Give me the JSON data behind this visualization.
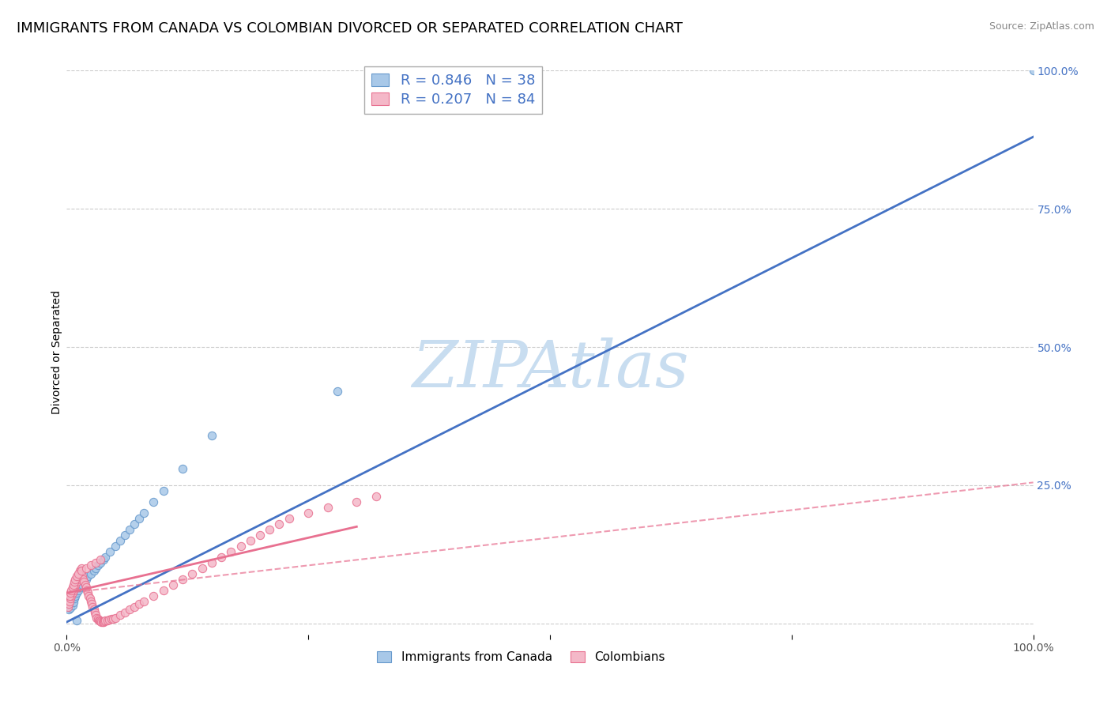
{
  "title": "IMMIGRANTS FROM CANADA VS COLOMBIAN DIVORCED OR SEPARATED CORRELATION CHART",
  "source": "Source: ZipAtlas.com",
  "ylabel": "Divorced or Separated",
  "xlabel": "",
  "watermark": "ZIPAtlas",
  "series": [
    {
      "name": "Immigrants from Canada",
      "color": "#a8c8e8",
      "edge_color": "#6699cc",
      "R": 0.846,
      "N": 38,
      "line_color": "#4472c4",
      "line_style": "solid",
      "x": [
        0.001,
        0.002,
        0.003,
        0.004,
        0.005,
        0.006,
        0.007,
        0.008,
        0.009,
        0.01,
        0.012,
        0.014,
        0.016,
        0.018,
        0.02,
        0.022,
        0.025,
        0.028,
        0.03,
        0.032,
        0.035,
        0.038,
        0.04,
        0.045,
        0.05,
        0.055,
        0.06,
        0.065,
        0.07,
        0.075,
        0.08,
        0.09,
        0.1,
        0.12,
        0.15,
        0.28,
        0.01,
        1.0
      ],
      "y": [
        0.03,
        0.025,
        0.035,
        0.028,
        0.04,
        0.032,
        0.038,
        0.045,
        0.05,
        0.055,
        0.06,
        0.065,
        0.07,
        0.075,
        0.08,
        0.085,
        0.09,
        0.095,
        0.1,
        0.105,
        0.11,
        0.115,
        0.12,
        0.13,
        0.14,
        0.15,
        0.16,
        0.17,
        0.18,
        0.19,
        0.2,
        0.22,
        0.24,
        0.28,
        0.34,
        0.42,
        0.005,
        1.0
      ]
    },
    {
      "name": "Colombians",
      "color": "#f4b8c8",
      "edge_color": "#e87090",
      "R": 0.207,
      "N": 84,
      "line_color": "#e87090",
      "line_style": "dashed",
      "x": [
        0.001,
        0.002,
        0.003,
        0.004,
        0.005,
        0.006,
        0.007,
        0.008,
        0.009,
        0.01,
        0.011,
        0.012,
        0.013,
        0.014,
        0.015,
        0.016,
        0.017,
        0.018,
        0.019,
        0.02,
        0.021,
        0.022,
        0.023,
        0.024,
        0.025,
        0.026,
        0.027,
        0.028,
        0.029,
        0.03,
        0.031,
        0.032,
        0.033,
        0.034,
        0.035,
        0.036,
        0.037,
        0.038,
        0.039,
        0.04,
        0.042,
        0.044,
        0.046,
        0.048,
        0.05,
        0.055,
        0.06,
        0.065,
        0.07,
        0.075,
        0.08,
        0.09,
        0.1,
        0.11,
        0.12,
        0.13,
        0.14,
        0.15,
        0.16,
        0.17,
        0.18,
        0.19,
        0.2,
        0.21,
        0.22,
        0.23,
        0.25,
        0.27,
        0.3,
        0.32,
        0.003,
        0.004,
        0.005,
        0.006,
        0.007,
        0.008,
        0.009,
        0.01,
        0.012,
        0.015,
        0.02,
        0.025,
        0.03,
        0.035
      ],
      "y": [
        0.03,
        0.035,
        0.04,
        0.045,
        0.05,
        0.055,
        0.06,
        0.065,
        0.07,
        0.075,
        0.08,
        0.085,
        0.09,
        0.095,
        0.1,
        0.085,
        0.08,
        0.075,
        0.07,
        0.065,
        0.06,
        0.055,
        0.05,
        0.045,
        0.04,
        0.035,
        0.03,
        0.025,
        0.02,
        0.015,
        0.01,
        0.008,
        0.006,
        0.005,
        0.004,
        0.003,
        0.002,
        0.003,
        0.004,
        0.005,
        0.006,
        0.007,
        0.008,
        0.009,
        0.01,
        0.015,
        0.02,
        0.025,
        0.03,
        0.035,
        0.04,
        0.05,
        0.06,
        0.07,
        0.08,
        0.09,
        0.1,
        0.11,
        0.12,
        0.13,
        0.14,
        0.15,
        0.16,
        0.17,
        0.18,
        0.19,
        0.2,
        0.21,
        0.22,
        0.23,
        0.05,
        0.055,
        0.06,
        0.065,
        0.07,
        0.075,
        0.08,
        0.085,
        0.09,
        0.095,
        0.1,
        0.105,
        0.11,
        0.115
      ]
    }
  ],
  "blue_line": {
    "x0": -0.02,
    "y0": -0.015,
    "x1": 1.0,
    "y1": 0.88
  },
  "pink_solid_line": {
    "x0": 0.0,
    "y0": 0.055,
    "x1": 0.3,
    "y1": 0.175
  },
  "pink_dashed_line": {
    "x0": 0.0,
    "y0": 0.055,
    "x1": 1.0,
    "y1": 0.255
  },
  "xlim": [
    0.0,
    1.0
  ],
  "ylim": [
    -0.02,
    1.0
  ],
  "ytick_positions": [
    0.0,
    0.25,
    0.5,
    0.75,
    1.0
  ],
  "ytick_labels": [
    "",
    "25.0%",
    "50.0%",
    "75.0%",
    "100.0%"
  ],
  "xtick_positions": [
    0.0,
    0.25,
    0.5,
    0.75,
    1.0
  ],
  "xtick_labels": [
    "0.0%",
    "",
    "",
    "",
    "100.0%"
  ],
  "grid_color": "#cccccc",
  "background_color": "#ffffff",
  "title_fontsize": 13,
  "axis_label_fontsize": 10,
  "tick_label_fontsize": 10,
  "legend_fontsize": 13,
  "watermark_color": "#c8ddf0",
  "watermark_fontsize": 60
}
